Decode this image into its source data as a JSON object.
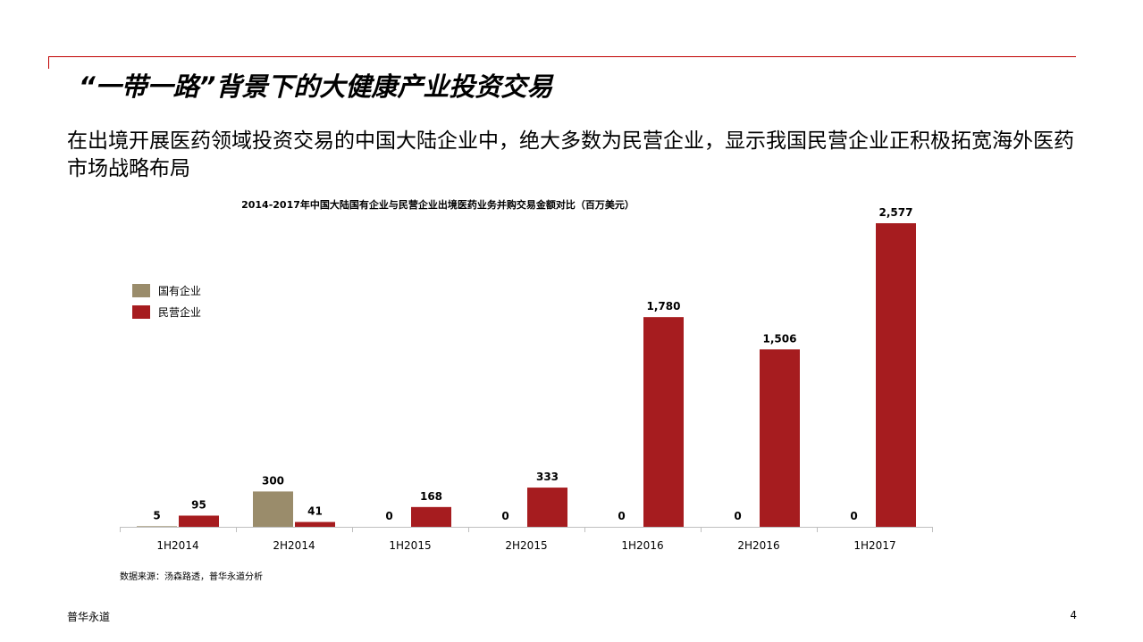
{
  "slide": {
    "title": "“一带一路”背景下的大健康产业投资交易",
    "subtitle": "在出境开展医药领域投资交易的中国大陆企业中，绝大多数为民营企业，显示我国民营企业正积极拓宽海外医药市场战略布局",
    "source": "数据来源：汤森路透，普华永道分析",
    "footer_brand": "普华永道",
    "page_number": "4"
  },
  "colors": {
    "accent_red": "#c00000",
    "soe": "#9a8c6b",
    "private": "#a61c1f"
  },
  "chart_data": {
    "type": "bar",
    "title": "2014-2017年中国大陆国有企业与民营企业出境医药业务并购交易金额对比（百万美元）",
    "categories": [
      "1H2014",
      "2H2014",
      "1H2015",
      "2H2015",
      "1H2016",
      "2H2016",
      "1H2017"
    ],
    "series": [
      {
        "name": "国有企业",
        "values": [
          5,
          300,
          0,
          0,
          0,
          0,
          0
        ],
        "labels": [
          "5",
          "300",
          "0",
          "0",
          "0",
          "0",
          "0"
        ]
      },
      {
        "name": "民营企业",
        "values": [
          95,
          41,
          168,
          333,
          1780,
          1506,
          2577
        ],
        "labels": [
          "95",
          "41",
          "168",
          "333",
          "1,780",
          "1,506",
          "2,577"
        ]
      }
    ],
    "xlabel": "",
    "ylabel": "",
    "grid": false,
    "legend_position": "top-left"
  }
}
